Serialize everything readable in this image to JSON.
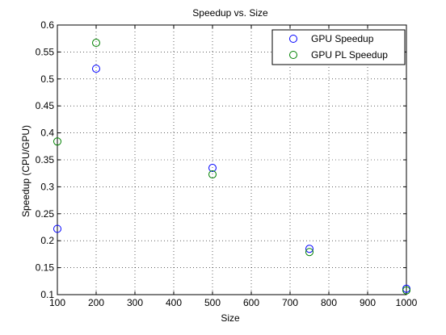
{
  "chart_data": {
    "type": "scatter",
    "title": "Speedup vs. Size",
    "xlabel": "Size",
    "ylabel": "Speedup (CPU/GPU)",
    "xlim": [
      100,
      1000
    ],
    "ylim": [
      0.1,
      0.6
    ],
    "xticks": [
      100,
      200,
      300,
      400,
      500,
      600,
      700,
      800,
      900,
      1000
    ],
    "yticks": [
      0.1,
      0.15,
      0.2,
      0.25,
      0.3,
      0.35,
      0.4,
      0.45,
      0.5,
      0.55,
      0.6
    ],
    "grid": true,
    "legend_position": "top-right",
    "series": [
      {
        "name": "GPU Speedup",
        "color": "#0000ff",
        "marker": "circle-open",
        "x": [
          100,
          200,
          500,
          750,
          1000
        ],
        "y": [
          0.222,
          0.519,
          0.335,
          0.185,
          0.111
        ]
      },
      {
        "name": "GPU PL Speedup",
        "color": "#008000",
        "marker": "circle-open",
        "x": [
          100,
          200,
          500,
          750,
          1000
        ],
        "y": [
          0.384,
          0.567,
          0.323,
          0.179,
          0.108
        ]
      }
    ]
  }
}
